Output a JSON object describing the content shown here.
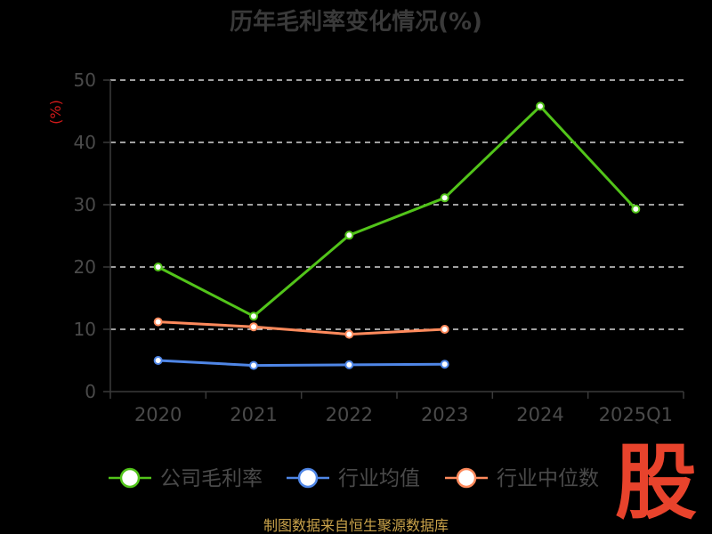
{
  "chart_data": {
    "type": "line",
    "title": "历年毛利率变化情况(%)",
    "ylabel": "(%)",
    "xlabel": "",
    "categories": [
      "2020",
      "2021",
      "2022",
      "2023",
      "2024",
      "2025Q1"
    ],
    "ylim": [
      0,
      50
    ],
    "yticks": [
      0,
      10,
      20,
      30,
      40,
      50
    ],
    "grid": "horizontal-dashed",
    "legend_position": "bottom",
    "series": [
      {
        "name": "公司毛利率",
        "color": "#52c41a",
        "values": [
          20.0,
          12.1,
          25.1,
          31.1,
          45.8,
          29.3
        ]
      },
      {
        "name": "行业均值",
        "color": "#4f86e6",
        "values": [
          5.0,
          4.2,
          4.3,
          4.4,
          null,
          null
        ]
      },
      {
        "name": "行业中位数",
        "color": "#ff8a5c",
        "values": [
          11.2,
          10.4,
          9.2,
          10.0,
          null,
          null
        ]
      }
    ]
  },
  "footer": {
    "source": "制图数据来自恒生聚源数据库"
  },
  "logo": {
    "text": "股",
    "color": "#e8432c"
  },
  "colors": {
    "background": "#000000",
    "axis": "#3a3a3a",
    "gridline": "#ffffff",
    "unit_label": "#d11a1a"
  }
}
